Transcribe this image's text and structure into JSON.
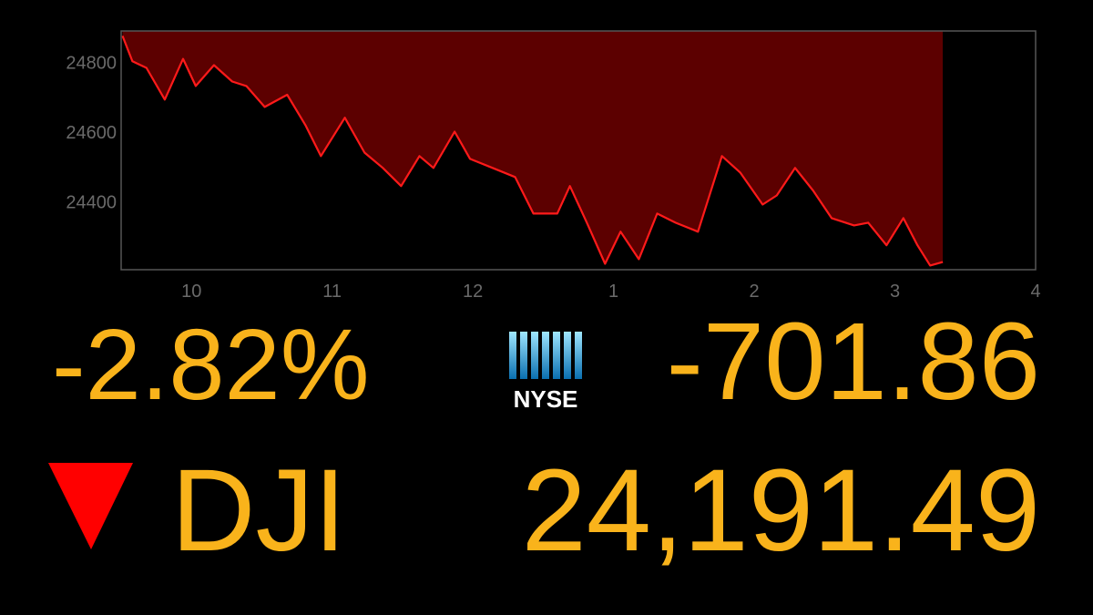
{
  "chart_data": {
    "type": "line",
    "x": [
      9.51,
      9.58,
      9.68,
      9.81,
      9.94,
      10.03,
      10.16,
      10.29,
      10.39,
      10.52,
      10.68,
      10.81,
      10.92,
      11.09,
      11.23,
      11.36,
      11.49,
      11.62,
      11.72,
      11.87,
      11.98,
      12.14,
      12.3,
      12.43,
      12.6,
      12.69,
      12.81,
      12.94,
      13.05,
      13.18,
      13.31,
      13.44,
      13.6,
      13.77,
      13.9,
      14.06,
      14.16,
      14.29,
      14.42,
      14.55,
      14.71,
      14.81,
      14.94,
      15.06,
      15.16,
      15.25,
      15.34
    ],
    "values": [
      24876,
      24803,
      24784,
      24693,
      24810,
      24732,
      24792,
      24745,
      24732,
      24672,
      24707,
      24620,
      24531,
      24641,
      24541,
      24497,
      24445,
      24531,
      24497,
      24601,
      24523,
      24497,
      24471,
      24366,
      24366,
      24445,
      24340,
      24222,
      24314,
      24235,
      24366,
      24340,
      24314,
      24531,
      24484,
      24392,
      24418,
      24497,
      24431,
      24353,
      24332,
      24340,
      24275,
      24353,
      24275,
      24217,
      24227
    ],
    "xlim": [
      9.5,
      16
    ],
    "ylim": [
      24205,
      24890
    ],
    "xticks": [
      10,
      11,
      12,
      {
        "value": 13,
        "label": "1"
      },
      {
        "value": 14,
        "label": "2"
      },
      {
        "value": 15,
        "label": "3"
      },
      {
        "value": 16,
        "label": "4"
      }
    ],
    "yticks": [
      24400,
      24600,
      24800
    ],
    "color": "#ff1a1a",
    "fill_color": "#5c0000"
  },
  "quote": {
    "percent_change": "-2.82%",
    "point_change": "-701.86",
    "symbol": "DJI",
    "price": "24,191.49",
    "exchange": "NYSE"
  }
}
